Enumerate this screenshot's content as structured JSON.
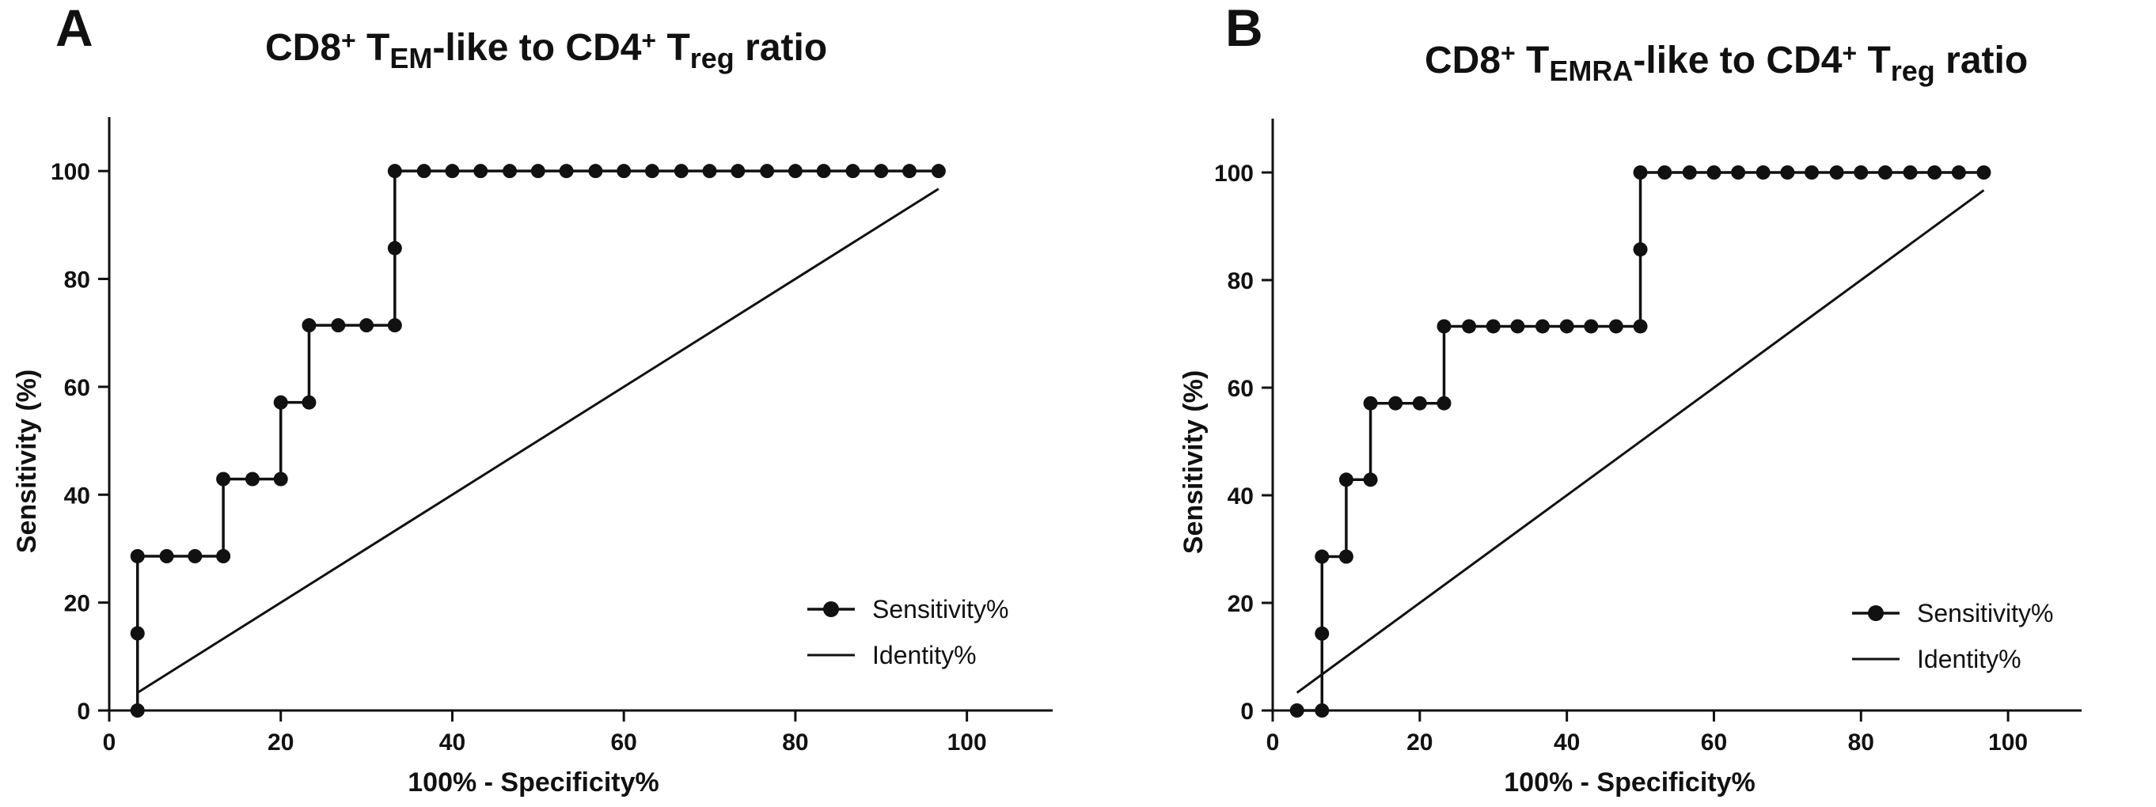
{
  "chart_data": [
    {
      "type": "line",
      "panel_label": "A",
      "title": {
        "parts": [
          {
            "text": "CD8",
            "style": "normal"
          },
          {
            "text": "+",
            "style": "sup"
          },
          {
            "text": " T",
            "style": "normal"
          },
          {
            "text": "EM",
            "style": "sub"
          },
          {
            "text": "-like to CD4",
            "style": "normal"
          },
          {
            "text": "+",
            "style": "sup"
          },
          {
            "text": " T",
            "style": "normal"
          },
          {
            "text": "reg",
            "style": "sub"
          },
          {
            "text": " ratio",
            "style": "normal"
          }
        ]
      },
      "xlabel": "100%  - Specificity%",
      "ylabel": "Sensitivity (%)",
      "xlim": [
        0,
        110
      ],
      "ylim": [
        0,
        110
      ],
      "xticks": [
        0,
        20,
        40,
        60,
        80,
        100
      ],
      "yticks": [
        0,
        20,
        40,
        60,
        80,
        100
      ],
      "legend": [
        {
          "label": "Sensitivity%",
          "marker": "circle-line"
        },
        {
          "label": "Identity%",
          "marker": "line"
        }
      ],
      "series": [
        {
          "name": "Sensitivity%",
          "step": true,
          "points": [
            [
              3.3,
              0
            ],
            [
              3.3,
              14.3
            ],
            [
              3.3,
              28.6
            ],
            [
              6.7,
              28.6
            ],
            [
              10,
              28.6
            ],
            [
              13.3,
              28.6
            ],
            [
              13.3,
              42.9
            ],
            [
              16.7,
              42.9
            ],
            [
              20,
              42.9
            ],
            [
              20,
              57.1
            ],
            [
              23.3,
              57.1
            ],
            [
              23.3,
              71.4
            ],
            [
              26.7,
              71.4
            ],
            [
              30,
              71.4
            ],
            [
              33.3,
              71.4
            ],
            [
              33.3,
              85.7
            ],
            [
              33.3,
              100
            ],
            [
              36.7,
              100
            ],
            [
              40,
              100
            ],
            [
              43.3,
              100
            ],
            [
              46.7,
              100
            ],
            [
              50,
              100
            ],
            [
              53.3,
              100
            ],
            [
              56.7,
              100
            ],
            [
              60,
              100
            ],
            [
              63.3,
              100
            ],
            [
              66.7,
              100
            ],
            [
              70,
              100
            ],
            [
              73.3,
              100
            ],
            [
              76.7,
              100
            ],
            [
              80,
              100
            ],
            [
              83.3,
              100
            ],
            [
              86.7,
              100
            ],
            [
              90,
              100
            ],
            [
              93.3,
              100
            ],
            [
              96.7,
              100
            ]
          ]
        },
        {
          "name": "Identity%",
          "points": [
            [
              3.3,
              3.3
            ],
            [
              96.7,
              96.7
            ]
          ]
        }
      ]
    },
    {
      "type": "line",
      "panel_label": "B",
      "title": {
        "parts": [
          {
            "text": "CD8",
            "style": "normal"
          },
          {
            "text": "+",
            "style": "sup"
          },
          {
            "text": " T",
            "style": "normal"
          },
          {
            "text": "EMRA",
            "style": "sub"
          },
          {
            "text": "-like to CD4",
            "style": "normal"
          },
          {
            "text": "+",
            "style": "sup"
          },
          {
            "text": " T",
            "style": "normal"
          },
          {
            "text": "reg",
            "style": "sub"
          },
          {
            "text": " ratio",
            "style": "normal"
          }
        ]
      },
      "xlabel": "100%  - Specificity%",
      "ylabel": "Sensitivity (%)",
      "xlim": [
        0,
        110
      ],
      "ylim": [
        0,
        110
      ],
      "xticks": [
        0,
        20,
        40,
        60,
        80,
        100
      ],
      "yticks": [
        0,
        20,
        40,
        60,
        80,
        100
      ],
      "legend": [
        {
          "label": "Sensitivity%",
          "marker": "circle-line"
        },
        {
          "label": "Identity%",
          "marker": "line"
        }
      ],
      "series": [
        {
          "name": "Sensitivity%",
          "step": true,
          "points": [
            [
              3.3,
              0
            ],
            [
              6.7,
              0
            ],
            [
              6.7,
              14.3
            ],
            [
              6.7,
              28.6
            ],
            [
              10,
              28.6
            ],
            [
              10,
              42.9
            ],
            [
              13.3,
              42.9
            ],
            [
              13.3,
              57.1
            ],
            [
              16.7,
              57.1
            ],
            [
              20,
              57.1
            ],
            [
              23.3,
              57.1
            ],
            [
              23.3,
              71.4
            ],
            [
              26.7,
              71.4
            ],
            [
              30,
              71.4
            ],
            [
              33.3,
              71.4
            ],
            [
              36.7,
              71.4
            ],
            [
              40,
              71.4
            ],
            [
              43.3,
              71.4
            ],
            [
              46.7,
              71.4
            ],
            [
              50,
              71.4
            ],
            [
              50,
              85.7
            ],
            [
              50,
              100
            ],
            [
              53.3,
              100
            ],
            [
              56.7,
              100
            ],
            [
              60,
              100
            ],
            [
              63.3,
              100
            ],
            [
              66.7,
              100
            ],
            [
              70,
              100
            ],
            [
              73.3,
              100
            ],
            [
              76.7,
              100
            ],
            [
              80,
              100
            ],
            [
              83.3,
              100
            ],
            [
              86.7,
              100
            ],
            [
              90,
              100
            ],
            [
              93.3,
              100
            ],
            [
              96.7,
              100
            ]
          ]
        },
        {
          "name": "Identity%",
          "points": [
            [
              3.3,
              3.3
            ],
            [
              96.7,
              96.7
            ]
          ]
        }
      ]
    }
  ]
}
